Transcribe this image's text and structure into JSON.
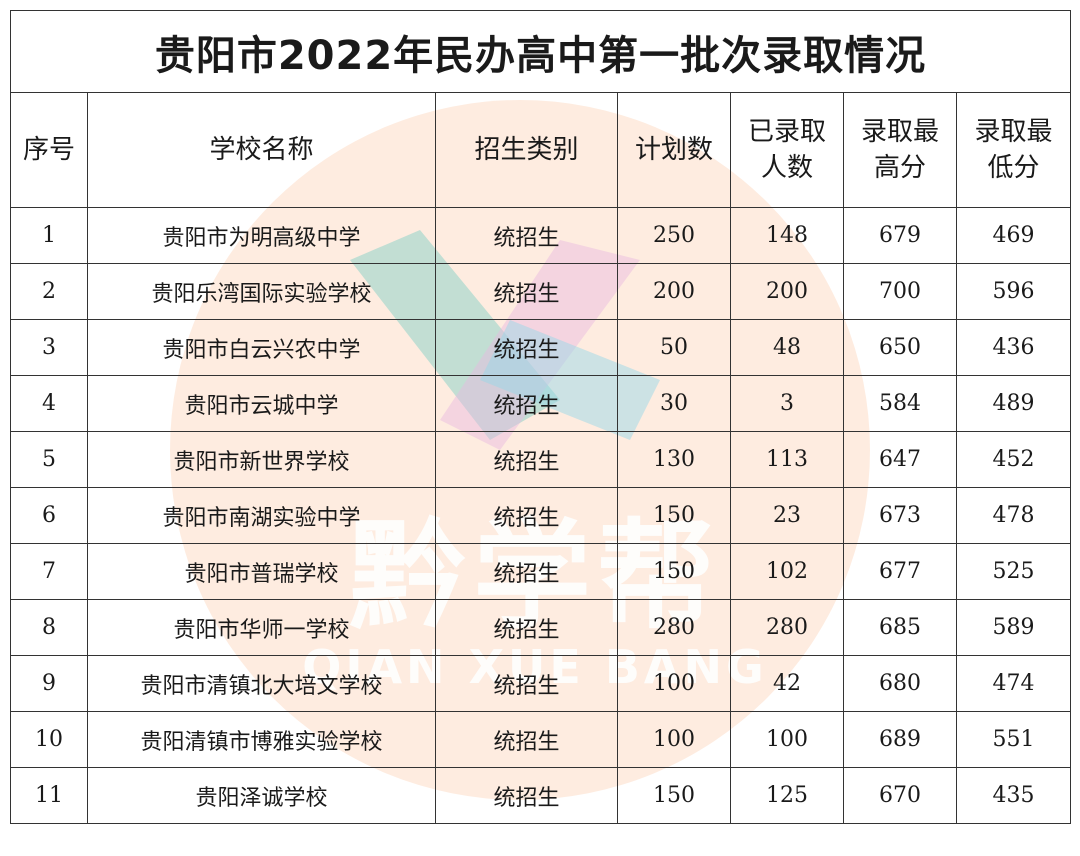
{
  "title": "贵阳市2022年民办高中第一批次录取情况",
  "headers": [
    "序号",
    "学校名称",
    "招生类别",
    "计划数",
    "已录取人数",
    "录取最高分",
    "录取最低分"
  ],
  "rows": [
    {
      "no": "1",
      "school": "贵阳市为明高级中学",
      "category": "统招生",
      "plan": "250",
      "admitted": "148",
      "max": "679",
      "min": "469"
    },
    {
      "no": "2",
      "school": "贵阳乐湾国际实验学校",
      "category": "统招生",
      "plan": "200",
      "admitted": "200",
      "max": "700",
      "min": "596"
    },
    {
      "no": "3",
      "school": "贵阳市白云兴农中学",
      "category": "统招生",
      "plan": "50",
      "admitted": "48",
      "max": "650",
      "min": "436"
    },
    {
      "no": "4",
      "school": "贵阳市云城中学",
      "category": "统招生",
      "plan": "30",
      "admitted": "3",
      "max": "584",
      "min": "489"
    },
    {
      "no": "5",
      "school": "贵阳市新世界学校",
      "category": "统招生",
      "plan": "130",
      "admitted": "113",
      "max": "647",
      "min": "452"
    },
    {
      "no": "6",
      "school": "贵阳市南湖实验中学",
      "category": "统招生",
      "plan": "150",
      "admitted": "23",
      "max": "673",
      "min": "478"
    },
    {
      "no": "7",
      "school": "贵阳市普瑞学校",
      "category": "统招生",
      "plan": "150",
      "admitted": "102",
      "max": "677",
      "min": "525"
    },
    {
      "no": "8",
      "school": "贵阳市华师一学校",
      "category": "统招生",
      "plan": "280",
      "admitted": "280",
      "max": "685",
      "min": "589"
    },
    {
      "no": "9",
      "school": "贵阳市清镇北大培文学校",
      "category": "统招生",
      "plan": "100",
      "admitted": "42",
      "max": "680",
      "min": "474"
    },
    {
      "no": "10",
      "school": "贵阳清镇市博雅实验学校",
      "category": "统招生",
      "plan": "100",
      "admitted": "100",
      "max": "689",
      "min": "551"
    },
    {
      "no": "11",
      "school": "贵阳泽诚学校",
      "category": "统招生",
      "plan": "150",
      "admitted": "125",
      "max": "670",
      "min": "435"
    }
  ],
  "watermark": {
    "text_cn": "黔学帮",
    "text_en": "QIAN XUE BANG",
    "circle_color": "#fde6d6"
  }
}
